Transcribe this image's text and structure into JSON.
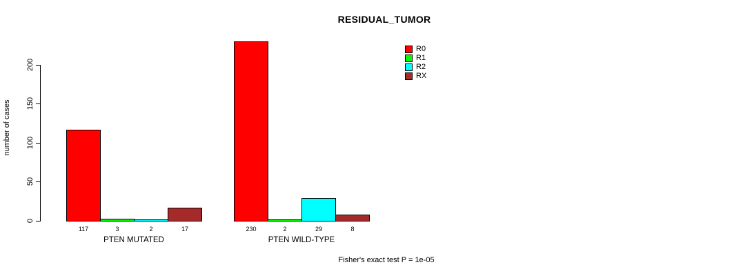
{
  "title": "RESIDUAL_TUMOR",
  "footnote": "Fisher's exact test P = 1e-05",
  "chart_data": {
    "type": "bar",
    "title": "RESIDUAL_TUMOR",
    "xlabel": "",
    "ylabel": "number of cases",
    "ylim": [
      0,
      230
    ],
    "yticks": [
      0,
      50,
      100,
      150,
      200
    ],
    "grid": false,
    "legend_position": "right",
    "categories": [
      "PTEN MUTATED",
      "PTEN WILD-TYPE"
    ],
    "series": [
      {
        "name": "R0",
        "color": "#FF0000",
        "values": [
          117,
          230
        ]
      },
      {
        "name": "R1",
        "color": "#00FF00",
        "values": [
          3,
          2
        ]
      },
      {
        "name": "R2",
        "color": "#00FFFF",
        "values": [
          2,
          29
        ]
      },
      {
        "name": "RX",
        "color": "#A52A2A",
        "values": [
          17,
          8
        ]
      }
    ],
    "bar_value_labels": [
      [
        117,
        3,
        2,
        17
      ],
      [
        230,
        2,
        29,
        8
      ]
    ],
    "footnote": "Fisher's exact test P = 1e-05"
  }
}
